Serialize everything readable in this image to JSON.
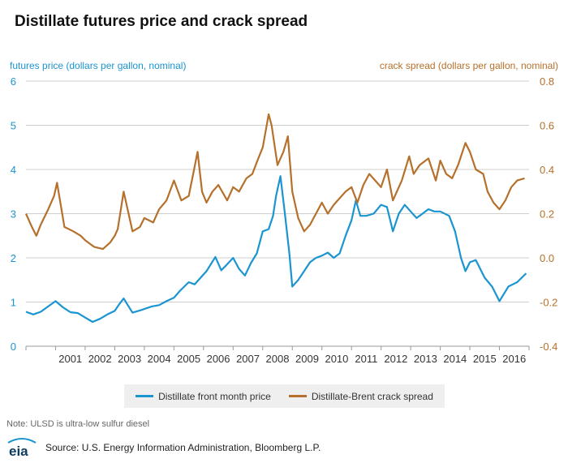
{
  "title": "Distillate futures price and crack spread",
  "left_axis_title": "futures price (dollars per gallon, nominal)",
  "right_axis_title": "crack spread (dollars per gallon, nominal)",
  "note": "Note: ULSD is ultra-low sulfur diesel",
  "source": "Source: U.S. Energy Information Administration, Bloomberg L.P.",
  "logo_text": "eia",
  "colors": {
    "price": "#1a95d0",
    "spread": "#b5702b"
  },
  "chart_data": {
    "type": "line",
    "title": "Distillate futures price and crack spread",
    "ylabel": "futures price (dollars per gallon, nominal)",
    "y2label": "crack spread (dollars per gallon, nominal)",
    "ylim": [
      0,
      6
    ],
    "y2lim": [
      -0.4,
      0.8
    ],
    "yticks": [
      "0",
      "1",
      "2",
      "3",
      "4",
      "5",
      "6"
    ],
    "y2ticks": [
      "-0.4",
      "-0.2",
      "0.0",
      "0.2",
      "0.4",
      "0.6",
      "0.8"
    ],
    "xlim": [
      2000.0,
      2017.0
    ],
    "xticks": [
      "2001",
      "2002",
      "2003",
      "2004",
      "2005",
      "2006",
      "2007",
      "2008",
      "2009",
      "2010",
      "2011",
      "2012",
      "2013",
      "2014",
      "2015",
      "2016"
    ],
    "grid": true,
    "legend_position": "bottom",
    "series": [
      {
        "name": "Distillate front month price",
        "axis": "left",
        "x": [
          2000.0,
          2000.25,
          2000.5,
          2000.75,
          2001.0,
          2001.25,
          2001.5,
          2001.75,
          2002.0,
          2002.25,
          2002.5,
          2002.75,
          2003.0,
          2003.15,
          2003.3,
          2003.6,
          2003.9,
          2004.25,
          2004.5,
          2004.75,
          2005.0,
          2005.2,
          2005.5,
          2005.7,
          2005.9,
          2006.1,
          2006.4,
          2006.6,
          2006.75,
          2007.0,
          2007.2,
          2007.4,
          2007.6,
          2007.8,
          2008.0,
          2008.2,
          2008.35,
          2008.45,
          2008.6,
          2008.75,
          2008.9,
          2009.0,
          2009.2,
          2009.4,
          2009.6,
          2009.8,
          2010.0,
          2010.2,
          2010.4,
          2010.6,
          2010.8,
          2011.0,
          2011.15,
          2011.3,
          2011.5,
          2011.75,
          2012.0,
          2012.2,
          2012.4,
          2012.6,
          2012.8,
          2013.0,
          2013.2,
          2013.4,
          2013.6,
          2013.8,
          2014.0,
          2014.3,
          2014.5,
          2014.7,
          2014.85,
          2015.0,
          2015.2,
          2015.5,
          2015.75,
          2016.0,
          2016.3,
          2016.6,
          2016.9
        ],
        "y": [
          0.78,
          0.72,
          0.78,
          0.9,
          1.02,
          0.88,
          0.77,
          0.75,
          0.65,
          0.55,
          0.62,
          0.72,
          0.8,
          0.95,
          1.08,
          0.76,
          0.82,
          0.9,
          0.93,
          1.02,
          1.1,
          1.25,
          1.45,
          1.4,
          1.55,
          1.7,
          2.02,
          1.72,
          1.82,
          2.0,
          1.75,
          1.6,
          1.88,
          2.1,
          2.6,
          2.65,
          2.95,
          3.4,
          3.85,
          3.0,
          2.1,
          1.35,
          1.5,
          1.7,
          1.9,
          2.0,
          2.05,
          2.12,
          2.0,
          2.1,
          2.5,
          2.85,
          3.3,
          2.95,
          2.95,
          3.0,
          3.2,
          3.15,
          2.6,
          3.0,
          3.2,
          3.05,
          2.9,
          3.0,
          3.1,
          3.05,
          3.05,
          2.95,
          2.6,
          2.0,
          1.7,
          1.9,
          1.95,
          1.55,
          1.35,
          1.02,
          1.35,
          1.45,
          1.65
        ]
      },
      {
        "name": "Distillate-Brent crack spread",
        "axis": "right",
        "x": [
          2000.0,
          2000.2,
          2000.35,
          2000.5,
          2000.75,
          2000.95,
          2001.05,
          2001.3,
          2001.6,
          2001.85,
          2002.0,
          2002.3,
          2002.6,
          2002.85,
          2003.0,
          2003.1,
          2003.3,
          2003.6,
          2003.85,
          2004.0,
          2004.3,
          2004.5,
          2004.75,
          2005.0,
          2005.25,
          2005.5,
          2005.65,
          2005.8,
          2005.95,
          2006.1,
          2006.3,
          2006.5,
          2006.8,
          2007.0,
          2007.2,
          2007.45,
          2007.65,
          2007.85,
          2008.0,
          2008.2,
          2008.3,
          2008.5,
          2008.7,
          2008.85,
          2009.0,
          2009.2,
          2009.4,
          2009.6,
          2009.8,
          2010.0,
          2010.2,
          2010.4,
          2010.6,
          2010.8,
          2011.0,
          2011.2,
          2011.4,
          2011.6,
          2011.8,
          2012.0,
          2012.2,
          2012.4,
          2012.7,
          2012.95,
          2013.1,
          2013.3,
          2013.6,
          2013.85,
          2014.0,
          2014.2,
          2014.4,
          2014.6,
          2014.85,
          2015.0,
          2015.2,
          2015.45,
          2015.6,
          2015.8,
          2016.0,
          2016.2,
          2016.4,
          2016.6,
          2016.85
        ],
        "y": [
          0.2,
          0.14,
          0.1,
          0.15,
          0.22,
          0.28,
          0.34,
          0.14,
          0.12,
          0.1,
          0.08,
          0.05,
          0.04,
          0.07,
          0.1,
          0.13,
          0.3,
          0.12,
          0.14,
          0.18,
          0.16,
          0.22,
          0.26,
          0.35,
          0.26,
          0.28,
          0.38,
          0.48,
          0.3,
          0.25,
          0.3,
          0.33,
          0.26,
          0.32,
          0.3,
          0.36,
          0.38,
          0.45,
          0.5,
          0.65,
          0.6,
          0.42,
          0.48,
          0.55,
          0.3,
          0.18,
          0.12,
          0.15,
          0.2,
          0.25,
          0.2,
          0.24,
          0.27,
          0.3,
          0.32,
          0.25,
          0.33,
          0.38,
          0.35,
          0.32,
          0.4,
          0.26,
          0.35,
          0.46,
          0.38,
          0.42,
          0.45,
          0.35,
          0.44,
          0.38,
          0.36,
          0.42,
          0.52,
          0.48,
          0.4,
          0.38,
          0.3,
          0.25,
          0.22,
          0.26,
          0.32,
          0.35,
          0.36
        ]
      }
    ]
  }
}
